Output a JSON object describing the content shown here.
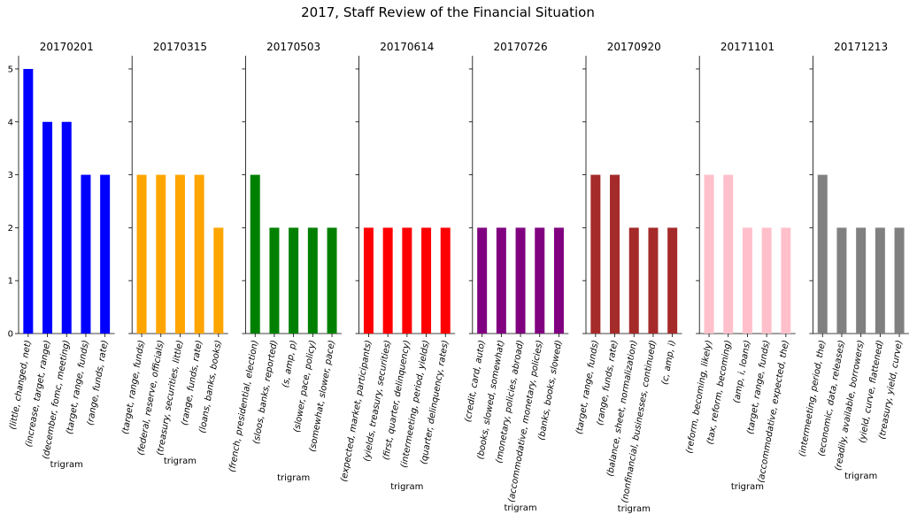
{
  "title": "2017, Staff Review of the Financial Situation",
  "chart_data": {
    "type": "bar",
    "title": "2017, Staff Review of the Financial Situation",
    "xlabel": "trigram",
    "ylabel": "",
    "ylim": [
      0,
      5.25
    ],
    "yticks": [
      0,
      1,
      2,
      3,
      4,
      5
    ],
    "grid": false,
    "panels": [
      {
        "title": "20170201",
        "color": "#0000ff",
        "categories": [
          "(little, changed, net)",
          "(increase, target, range)",
          "(december, fomc, meeting)",
          "(target, range, funds)",
          "(range, funds, rate)"
        ],
        "values": [
          5,
          4,
          4,
          3,
          3
        ]
      },
      {
        "title": "20170315",
        "color": "#ffa500",
        "categories": [
          "(target, range, funds)",
          "(federal, reserve, officials)",
          "(treasury, securities, little)",
          "(range, funds, rate)",
          "(loans, banks, books)"
        ],
        "values": [
          3,
          3,
          3,
          3,
          2
        ]
      },
      {
        "title": "20170503",
        "color": "#008000",
        "categories": [
          "(french, presidential, election)",
          "(sloos, banks, reported)",
          "(s, amp, p)",
          "(slower, pace, policy)",
          "(somewhat, slower, pace)"
        ],
        "values": [
          3,
          2,
          2,
          2,
          2
        ]
      },
      {
        "title": "20170614",
        "color": "#ff0000",
        "categories": [
          "(expected, market, participants)",
          "(yields, treasury, securities)",
          "(first, quarter, delinquency)",
          "(intermeeting, period, yields)",
          "(quarter, delinquency, rates)"
        ],
        "values": [
          2,
          2,
          2,
          2,
          2
        ]
      },
      {
        "title": "20170726",
        "color": "#800080",
        "categories": [
          "(credit, card, auto)",
          "(books, slowed, somewhat)",
          "(monetary, policies, abroad)",
          "(accommodative, monetary, policies)",
          "(banks, books, slowed)"
        ],
        "values": [
          2,
          2,
          2,
          2,
          2
        ]
      },
      {
        "title": "20170920",
        "color": "#a52a2a",
        "categories": [
          "(target, range, funds)",
          "(range, funds, rate)",
          "(balance, sheet, normalization)",
          "(nonfinancial, businesses, continued)",
          "(c, amp, i)"
        ],
        "values": [
          3,
          3,
          2,
          2,
          2
        ]
      },
      {
        "title": "20171101",
        "color": "#ffc0cb",
        "categories": [
          "(reform, becoming, likely)",
          "(tax, reform, becoming)",
          "(amp, i, loans)",
          "(target, range, funds)",
          "(accommodative, expected, the)"
        ],
        "values": [
          3,
          3,
          2,
          2,
          2
        ]
      },
      {
        "title": "20171213",
        "color": "#808080",
        "categories": [
          "(intermeeting, period, the)",
          "(economic, data, releases)",
          "(readily, available, borrowers)",
          "(yield, curve, flattened)",
          "(treasury, yield, curve)"
        ],
        "values": [
          3,
          2,
          2,
          2,
          2
        ]
      }
    ]
  }
}
